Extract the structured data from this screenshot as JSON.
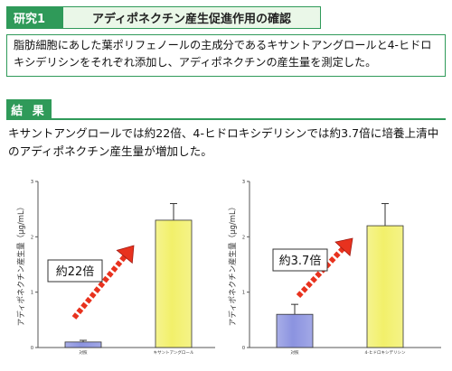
{
  "section1": {
    "tag": "研究1",
    "title": "アディポネクチン産生促進作用の確認",
    "description": "脂肪細胞にあした葉ポリフェノールの主成分であるキサントアングロールと4-ヒドロキシデリシンをそれぞれ添加し、アディポネクチンの産生量を測定した。"
  },
  "result": {
    "tag": "結 果",
    "text": "キサントアングロールでは約22倍、4-ヒドロキシデリシンでは約3.7倍に培養上清中のアディポネクチン産生量が増加した。"
  },
  "chart_data": [
    {
      "type": "bar",
      "ylabel": "アディポネクチン産生量（μg/mL）",
      "ylim": [
        0,
        3
      ],
      "yticks": [
        "0",
        "1",
        "2",
        "3"
      ],
      "categories": [
        "対照",
        "キサントアングロール"
      ],
      "values": [
        0.1,
        2.3
      ],
      "errors": [
        0.03,
        0.3
      ],
      "bar_colors": [
        "#8b93e0",
        "#f2f06a"
      ],
      "annotation": "約22倍"
    },
    {
      "type": "bar",
      "ylabel": "アディポネクチン産生量（μg/mL）",
      "ylim": [
        0,
        3
      ],
      "yticks": [
        "0",
        "1",
        "2",
        "3"
      ],
      "categories": [
        "対照",
        "4-ヒドロキシデリシン"
      ],
      "values": [
        0.6,
        2.2
      ],
      "errors": [
        0.18,
        0.4
      ],
      "bar_colors": [
        "#8b93e0",
        "#f2f06a"
      ],
      "annotation": "約3.7倍"
    }
  ]
}
